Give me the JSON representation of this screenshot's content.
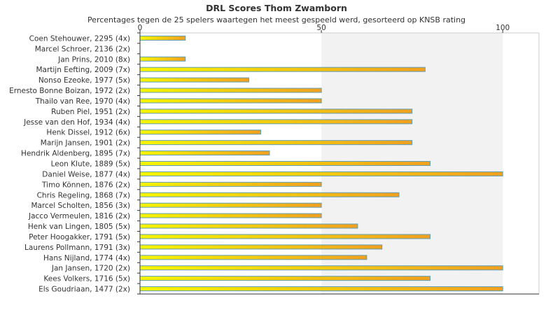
{
  "chart_data": {
    "type": "bar",
    "orientation": "horizontal",
    "title": "DRL Scores Thom Zwamborn",
    "subtitle": "Percentages tegen de 25 spelers waartegen het meest gespeeld werd, gesorteerd op KNSB rating",
    "xlabel": "",
    "ylabel": "",
    "xlim": [
      0,
      110
    ],
    "xticks": [
      "0",
      "50",
      "100"
    ],
    "grid": false,
    "legend": "none",
    "colors": {
      "bar_start": "#f5f500",
      "bar_end": "#f0a020",
      "bar_border": "#5f9eb8",
      "band_light": "#ffffff",
      "band_dark": "#f2f2f2",
      "axis": "#333333"
    },
    "categories": [
      "Coen Stehouwer, 2295 (4x)",
      "Marcel Schroer, 2136 (2x)",
      "Jan Prins, 2010 (8x)",
      "Martijn Eefting, 2009 (7x)",
      "Nonso Ezeoke, 1977 (5x)",
      "Ernesto Bonne Boizan, 1972 (2x)",
      "Thailo van Ree, 1970 (4x)",
      "Ruben Piel, 1951 (2x)",
      "Jesse van den Hof, 1934 (4x)",
      "Henk Dissel, 1912 (6x)",
      "Marijn Jansen, 1901 (2x)",
      "Hendrik Aldenberg, 1895 (7x)",
      "Leon Klute, 1889 (5x)",
      "Daniel Weise, 1877 (4x)",
      "Timo Können, 1876 (2x)",
      "Chris Regeling, 1868 (7x)",
      "Marcel Scholten, 1856 (3x)",
      "Jacco Vermeulen, 1816 (2x)",
      "Henk van Lingen, 1805 (5x)",
      "Peter Hoogakker, 1791 (5x)",
      "Laurens Pollmann, 1791 (3x)",
      "Hans Nijland, 1774 (4x)",
      "Jan Jansen, 1720 (2x)",
      "Kees Volkers, 1716 (5x)",
      "Els Goudriaan, 1477 (2x)"
    ],
    "values": [
      12.5,
      0,
      12.5,
      78.6,
      30,
      50,
      50,
      75,
      75,
      33.3,
      75,
      35.7,
      80,
      100,
      50,
      71.4,
      50,
      50,
      60,
      80,
      66.7,
      62.5,
      100,
      80,
      100
    ]
  }
}
